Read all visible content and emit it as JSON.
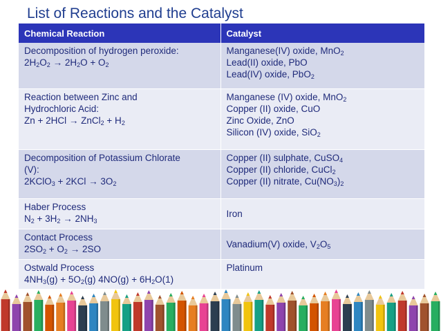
{
  "title": "List of Reactions and the Catalyst",
  "headers": {
    "reaction": "Chemical Reaction",
    "catalyst": "Catalyst"
  },
  "rows": [
    {
      "reaction": [
        [
          [
            "Decomposition of hydrogen peroxide:",
            0
          ]
        ],
        [
          [
            "2H",
            0
          ],
          [
            "2",
            1
          ],
          [
            "O",
            0
          ],
          [
            "2",
            1
          ],
          [
            " → 2H",
            0
          ],
          [
            "2",
            1
          ],
          [
            "O + O",
            0
          ],
          [
            "2",
            1
          ]
        ]
      ],
      "catalyst": [
        [
          [
            "Manganese(IV) oxide, MnO",
            0
          ],
          [
            "2",
            1
          ]
        ],
        [
          [
            "Lead(II) oxide, PbO",
            0
          ]
        ],
        [
          [
            "Lead(IV) oxide, PbO",
            0
          ],
          [
            "2",
            1
          ]
        ]
      ]
    },
    {
      "reaction": [
        [
          [
            "Reaction between Zinc and",
            0
          ]
        ],
        [
          [
            "Hydrochloric Acid:",
            0
          ]
        ],
        [
          [
            "Zn + 2HCl → ZnCl",
            0
          ],
          [
            "2",
            1
          ],
          [
            " + H",
            0
          ],
          [
            "2",
            1
          ]
        ]
      ],
      "catalyst": [
        [
          [
            "Manganese (IV) oxide, MnO",
            0
          ],
          [
            "2",
            1
          ]
        ],
        [
          [
            "Copper (II) oxide, CuO",
            0
          ]
        ],
        [
          [
            "Zinc Oxide, ZnO",
            0
          ]
        ],
        [
          [
            "Silicon (IV) oxide, SiO",
            0
          ],
          [
            "2",
            1
          ]
        ]
      ]
    },
    {
      "reaction": [
        [
          [
            "Decomposition of Potassium Chlorate",
            0
          ]
        ],
        [
          [
            "(V):",
            0
          ]
        ],
        [
          [
            "2KClO",
            0
          ],
          [
            "3",
            1
          ],
          [
            " + 2KCl → 3O",
            0
          ],
          [
            "2",
            1
          ]
        ]
      ],
      "catalyst": [
        [
          [
            "Copper (II) sulphate, CuSO",
            0
          ],
          [
            "4",
            1
          ]
        ],
        [
          [
            "Copper (II) chloride, CuCl",
            0
          ],
          [
            "2",
            1
          ]
        ],
        [
          [
            "Copper (II) nitrate, Cu(NO",
            0
          ],
          [
            "3",
            1
          ],
          [
            ")",
            0
          ],
          [
            "2",
            1
          ]
        ]
      ]
    },
    {
      "reaction": [
        [
          [
            "Haber Process",
            0
          ]
        ],
        [
          [
            "N",
            0
          ],
          [
            "2",
            1
          ],
          [
            " + 3H",
            0
          ],
          [
            "2",
            1
          ],
          [
            " → 2NH",
            0
          ],
          [
            "3",
            1
          ]
        ]
      ],
      "catalyst": [
        [
          [
            "Iron",
            0
          ]
        ]
      ],
      "catalyst_valign": "middle"
    },
    {
      "reaction": [
        [
          [
            "Contact Process",
            0
          ]
        ],
        [
          [
            "2SO",
            0
          ],
          [
            "2",
            1
          ],
          [
            " + O",
            0
          ],
          [
            "2",
            1
          ],
          [
            " → 2SO",
            0
          ]
        ]
      ],
      "catalyst": [
        [
          [
            "Vanadium(V) oxide, V",
            0
          ],
          [
            "2",
            1
          ],
          [
            "O",
            0
          ],
          [
            "5",
            1
          ]
        ]
      ],
      "catalyst_valign": "middle"
    },
    {
      "reaction": [
        [
          [
            "Ostwald Process",
            0
          ]
        ],
        [
          [
            "4NH",
            0
          ],
          [
            "3",
            1
          ],
          [
            "(g) + 5O",
            0
          ],
          [
            "2",
            1
          ],
          [
            "(g)  4NO(g) + 6H",
            0
          ],
          [
            "2",
            1
          ],
          [
            "O(1)",
            0
          ]
        ]
      ],
      "catalyst": [
        [
          [
            "Platinum",
            0
          ]
        ]
      ]
    }
  ],
  "colors": {
    "title": "#1f3d8f",
    "header_bg": "#2c35b8",
    "row_dark": "#d4d8ea",
    "row_light": "#eaecf5",
    "text": "#1f2a7a"
  },
  "pencil_colors": [
    "#c0392b",
    "#e67e22",
    "#f1c40f",
    "#27ae60",
    "#2e86c1",
    "#8e44ad",
    "#e84393",
    "#16a085",
    "#d35400",
    "#7f8c8d",
    "#a0522d",
    "#2c3e50"
  ],
  "decoration": "colored-pencils-border"
}
